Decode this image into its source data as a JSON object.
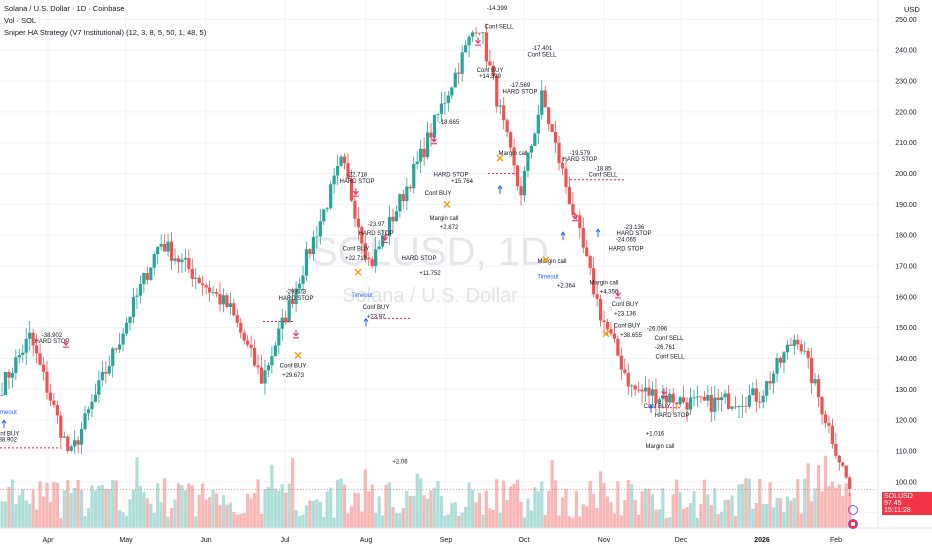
{
  "header": {
    "symbol_title": "Solana / U.S. Dollar · 1D · Coinbase",
    "volume_label": "Vol · SOL",
    "strategy_label": "Sniper HA Strategy (V7 Institutional) (12, 3, 8, 5, 50, 1, 48, 5)",
    "currency": "USD"
  },
  "watermark": {
    "ticker": "SOLUSD, 1D",
    "name": "Solana / U.S. Dollar"
  },
  "price_tag": {
    "symbol": "SOLUSD",
    "price": "97.45",
    "countdown": "15:11:28"
  },
  "colors": {
    "up": "#26a69a",
    "down": "#ef5350",
    "volume_up": "#9bd6cf",
    "volume_down": "#f5a6a4",
    "signal": "#e91e63",
    "exit": "#ff9800",
    "timeout": "#2962ff",
    "text": "#131722",
    "price_tag": "#f23645"
  },
  "chart_data": {
    "type": "candlestick",
    "x_axis": {
      "tick_labels": [
        "Apr",
        "May",
        "Jun",
        "Jul",
        "Aug",
        "Sep",
        "Oct",
        "Nov",
        "Dec",
        "2026",
        "Feb"
      ]
    },
    "y_axis": {
      "range": [
        85,
        255
      ],
      "ticks": [
        90,
        100,
        110,
        120,
        130,
        140,
        150,
        160,
        170,
        180,
        190,
        200,
        210,
        220,
        230,
        240,
        250
      ],
      "currency": "USD"
    },
    "grid": true,
    "key_closes": [
      {
        "label": "Apr",
        "value": 130
      },
      {
        "label": "Apr peak",
        "value": 147
      },
      {
        "label": "Apr low",
        "value": 108
      },
      {
        "label": "May",
        "value": 178
      },
      {
        "label": "Jun",
        "value": 156
      },
      {
        "label": "Jul low",
        "value": 133
      },
      {
        "label": "Jul peak",
        "value": 204
      },
      {
        "label": "Aug",
        "value": 170
      },
      {
        "label": "Aug high",
        "value": 205
      },
      {
        "label": "Sep peak",
        "value": 250
      },
      {
        "label": "Oct",
        "value": 193
      },
      {
        "label": "Oct high",
        "value": 225
      },
      {
        "label": "Nov",
        "value": 155
      },
      {
        "label": "Nov low",
        "value": 130
      },
      {
        "label": "Dec",
        "value": 125
      },
      {
        "label": "2026",
        "value": 128
      },
      {
        "label": "Jan high",
        "value": 148
      },
      {
        "label": "Feb",
        "value": 97.45
      }
    ],
    "last_price": 97.45,
    "annotations": [
      {
        "text": "-38.902",
        "price": 147
      },
      {
        "text": "HARD STOP",
        "price": 145
      },
      {
        "text": "Conf BUY",
        "price": 115
      },
      {
        "text": "+38.902",
        "price": 113
      },
      {
        "text": "-29.673",
        "price": 161
      },
      {
        "text": "HARD STOP",
        "price": 159
      },
      {
        "text": "Conf BUY",
        "price": 137
      },
      {
        "text": "+29.673",
        "price": 134
      },
      {
        "text": "-22.718",
        "price": 199
      },
      {
        "text": "HARD STOP",
        "price": 197
      },
      {
        "text": "Conf BUY",
        "price": 175
      },
      {
        "text": "+22.718",
        "price": 172
      },
      {
        "text": "-23.97",
        "price": 183
      },
      {
        "text": "HARD STOP",
        "price": 180
      },
      {
        "text": "Conf BUY",
        "price": 156
      },
      {
        "text": "+23.97",
        "price": 153
      },
      {
        "text": "-18.665",
        "price": 216
      },
      {
        "text": "HARD STOP",
        "price": 199
      },
      {
        "text": "+15.764",
        "price": 197
      },
      {
        "text": "Conf BUY",
        "price": 193
      },
      {
        "text": "Margin call",
        "price": 185
      },
      {
        "text": "+2.872",
        "price": 182
      },
      {
        "text": "HARD STOP",
        "price": 172
      },
      {
        "text": "+11.752",
        "price": 167
      },
      {
        "text": "-14.399",
        "price": 253
      },
      {
        "text": "Conf SELL",
        "price": 247
      },
      {
        "text": "Conf BUY",
        "price": 233
      },
      {
        "text": "+14.399",
        "price": 231
      },
      {
        "text": "-17.569",
        "price": 228
      },
      {
        "text": "HARD STOP",
        "price": 226
      },
      {
        "text": "Margin call",
        "price": 206
      },
      {
        "text": "-17.401",
        "price": 240
      },
      {
        "text": "Conf SELL",
        "price": 238
      },
      {
        "text": "-19.579",
        "price": 206
      },
      {
        "text": "HARD STOP",
        "price": 204
      },
      {
        "text": "-18.85",
        "price": 201
      },
      {
        "text": "Conf SELL",
        "price": 199
      },
      {
        "text": "Margin call",
        "price": 171
      },
      {
        "text": "+2.364",
        "price": 163
      },
      {
        "text": "Margin call",
        "price": 164
      },
      {
        "text": "+4.356",
        "price": 161
      },
      {
        "text": "-23.136",
        "price": 182
      },
      {
        "text": "HARD STOP",
        "price": 180
      },
      {
        "text": "-24.065",
        "price": 178
      },
      {
        "text": "HARD STOP",
        "price": 175
      },
      {
        "text": "Conf BUY",
        "price": 157
      },
      {
        "text": "+23.136",
        "price": 154
      },
      {
        "text": "Conf BUY",
        "price": 150
      },
      {
        "text": "+38.655",
        "price": 147
      },
      {
        "text": "-26.096",
        "price": 149
      },
      {
        "text": "Conf SELL",
        "price": 146
      },
      {
        "text": "-26.761",
        "price": 143
      },
      {
        "text": "Conf SELL",
        "price": 140
      },
      {
        "text": "Conf BUY",
        "price": 124
      },
      {
        "text": "HARD STOP",
        "price": 121
      },
      {
        "text": "+1.016",
        "price": 115
      },
      {
        "text": "Margin call",
        "price": 111
      },
      {
        "text": "+2.06",
        "price": 106
      }
    ],
    "timeout_labels": [
      {
        "text": "Timeout",
        "price": 122
      },
      {
        "text": "Timeout",
        "price": 160
      },
      {
        "text": "Timeout",
        "price": 166
      }
    ]
  }
}
